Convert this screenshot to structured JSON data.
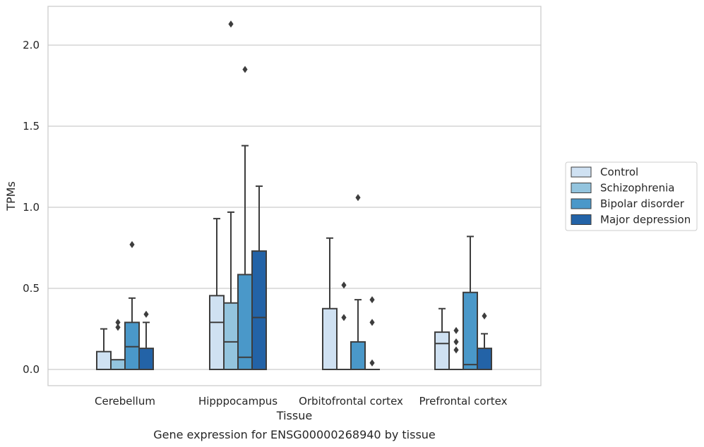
{
  "chart_data": {
    "type": "box",
    "title": "",
    "caption": "Gene expression for ENSG00000268940 by tissue",
    "xlabel": "Tissue",
    "ylabel": "TPMs",
    "ylim": [
      -0.1,
      2.25
    ],
    "yticks": [
      0.0,
      0.5,
      1.0,
      1.5,
      2.0
    ],
    "ytick_labels": [
      "0.0",
      "0.5",
      "1.0",
      "1.5",
      "2.0"
    ],
    "grid": "horizontal",
    "legend_position": "right",
    "categories": [
      "Cerebellum",
      "Hipppocampus",
      "Orbitofrontal cortex",
      "Prefrontal cortex"
    ],
    "series": [
      {
        "name": "Control",
        "color": "#cfe1f2",
        "boxes": [
          {
            "whislo": 0.0,
            "q1": 0.0,
            "med": 0.0,
            "q3": 0.11,
            "whishi": 0.25,
            "fliers": []
          },
          {
            "whislo": 0.0,
            "q1": 0.0,
            "med": 0.29,
            "q3": 0.455,
            "whishi": 0.93,
            "fliers": []
          },
          {
            "whislo": 0.0,
            "q1": 0.0,
            "med": 0.0,
            "q3": 0.375,
            "whishi": 0.81,
            "fliers": []
          },
          {
            "whislo": 0.0,
            "q1": 0.0,
            "med": 0.16,
            "q3": 0.23,
            "whishi": 0.375,
            "fliers": []
          }
        ]
      },
      {
        "name": "Schizophrenia",
        "color": "#93c4de",
        "boxes": [
          {
            "whislo": 0.0,
            "q1": 0.0,
            "med": 0.0,
            "q3": 0.06,
            "whishi": 0.06,
            "fliers": [
              0.26,
              0.29
            ]
          },
          {
            "whislo": 0.0,
            "q1": 0.0,
            "med": 0.17,
            "q3": 0.41,
            "whishi": 0.97,
            "fliers": [
              2.13
            ]
          },
          {
            "whislo": 0.0,
            "q1": 0.0,
            "med": 0.0,
            "q3": 0.0,
            "whishi": 0.0,
            "fliers": [
              0.32,
              0.52
            ]
          },
          {
            "whislo": 0.0,
            "q1": 0.0,
            "med": 0.0,
            "q3": 0.0,
            "whishi": 0.0,
            "fliers": [
              0.12,
              0.17,
              0.24
            ]
          }
        ]
      },
      {
        "name": "Bipolar disorder",
        "color": "#4a98c9",
        "boxes": [
          {
            "whislo": 0.0,
            "q1": 0.0,
            "med": 0.14,
            "q3": 0.29,
            "whishi": 0.44,
            "fliers": [
              0.77
            ]
          },
          {
            "whislo": 0.0,
            "q1": 0.0,
            "med": 0.075,
            "q3": 0.585,
            "whishi": 1.38,
            "fliers": [
              1.85
            ]
          },
          {
            "whislo": 0.0,
            "q1": 0.0,
            "med": 0.0,
            "q3": 0.17,
            "whishi": 0.43,
            "fliers": [
              1.06
            ]
          },
          {
            "whislo": 0.0,
            "q1": 0.0,
            "med": 0.03,
            "q3": 0.475,
            "whishi": 0.82,
            "fliers": []
          }
        ]
      },
      {
        "name": "Major depression",
        "color": "#2363a7",
        "boxes": [
          {
            "whislo": 0.0,
            "q1": 0.0,
            "med": 0.0,
            "q3": 0.13,
            "whishi": 0.29,
            "fliers": [
              0.34
            ]
          },
          {
            "whislo": 0.0,
            "q1": 0.0,
            "med": 0.32,
            "q3": 0.73,
            "whishi": 1.13,
            "fliers": []
          },
          {
            "whislo": 0.0,
            "q1": 0.0,
            "med": 0.0,
            "q3": 0.0,
            "whishi": 0.0,
            "fliers": [
              0.04,
              0.29,
              0.43
            ]
          },
          {
            "whislo": 0.0,
            "q1": 0.0,
            "med": 0.0,
            "q3": 0.13,
            "whishi": 0.22,
            "fliers": [
              0.33
            ]
          }
        ]
      }
    ]
  }
}
